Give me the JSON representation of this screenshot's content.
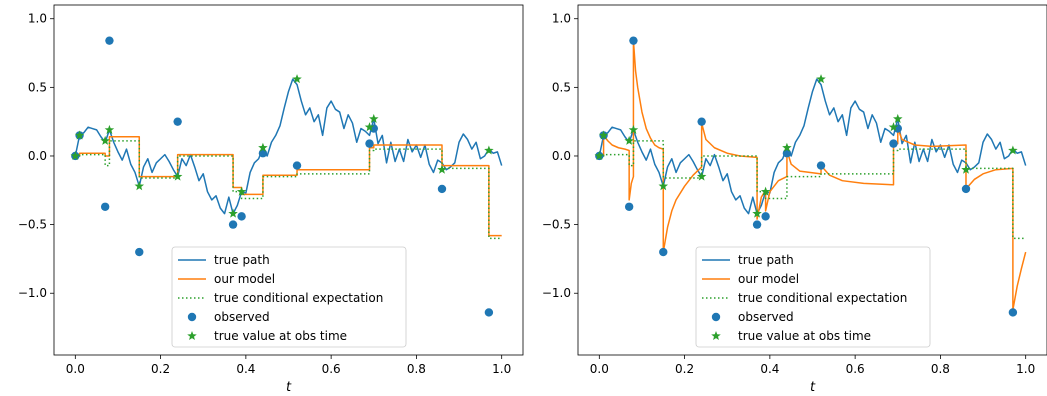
{
  "chart_data": [
    {
      "type": "line",
      "xlabel": "t",
      "xlim": [
        -0.05,
        1.05
      ],
      "ylim": [
        -1.45,
        1.1
      ],
      "xticks": [
        "0.0",
        "0.2",
        "0.4",
        "0.6",
        "0.8",
        "1.0"
      ],
      "yticks": [
        "−1.0",
        "−0.5",
        "0.0",
        "0.5",
        "1.0"
      ],
      "legend_placement": "lower-center",
      "legend": {
        "true_path": "true path",
        "our_model": "our model",
        "true_cond_exp": "true conditional expectation",
        "observed": "observed",
        "true_value_obs": "true value at obs time"
      },
      "colors": {
        "path": "#1f77b4",
        "model": "#ff7f0e",
        "cond": "#2ca02c",
        "observed": "#1f77b4",
        "star": "#2ca02c"
      },
      "true_path": {
        "x": [
          0,
          0.01,
          0.02,
          0.03,
          0.04,
          0.05,
          0.06,
          0.07,
          0.08,
          0.09,
          0.1,
          0.11,
          0.12,
          0.13,
          0.14,
          0.15,
          0.16,
          0.17,
          0.18,
          0.19,
          0.2,
          0.21,
          0.22,
          0.23,
          0.24,
          0.25,
          0.26,
          0.27,
          0.28,
          0.29,
          0.3,
          0.31,
          0.32,
          0.33,
          0.34,
          0.35,
          0.36,
          0.37,
          0.38,
          0.39,
          0.4,
          0.41,
          0.42,
          0.43,
          0.44,
          0.45,
          0.46,
          0.47,
          0.48,
          0.49,
          0.5,
          0.51,
          0.52,
          0.53,
          0.54,
          0.55,
          0.56,
          0.57,
          0.58,
          0.59,
          0.6,
          0.61,
          0.62,
          0.63,
          0.64,
          0.65,
          0.66,
          0.67,
          0.68,
          0.69,
          0.7,
          0.71,
          0.72,
          0.73,
          0.74,
          0.75,
          0.76,
          0.77,
          0.78,
          0.79,
          0.8,
          0.81,
          0.82,
          0.83,
          0.84,
          0.85,
          0.86,
          0.87,
          0.88,
          0.89,
          0.9,
          0.91,
          0.92,
          0.93,
          0.94,
          0.95,
          0.96,
          0.97,
          0.98,
          0.99,
          1.0
        ],
        "y": [
          0,
          0.15,
          0.17,
          0.21,
          0.2,
          0.19,
          0.14,
          0.1,
          0.19,
          0.1,
          0.03,
          -0.03,
          0.05,
          -0.06,
          -0.12,
          -0.22,
          -0.08,
          -0.02,
          -0.12,
          -0.05,
          -0.02,
          0.01,
          -0.04,
          -0.1,
          -0.15,
          -0.02,
          -0.07,
          0.01,
          -0.08,
          -0.18,
          -0.13,
          -0.26,
          -0.32,
          -0.29,
          -0.38,
          -0.42,
          -0.3,
          -0.42,
          -0.36,
          -0.26,
          -0.27,
          -0.12,
          -0.05,
          -0.02,
          0.06,
          0.0,
          0.1,
          0.15,
          0.22,
          0.35,
          0.47,
          0.56,
          0.52,
          0.4,
          0.3,
          0.35,
          0.25,
          0.3,
          0.15,
          0.35,
          0.4,
          0.34,
          0.32,
          0.2,
          0.3,
          0.24,
          0.1,
          0.2,
          0.18,
          0.15,
          0.27,
          0.09,
          0.15,
          -0.05,
          0.1,
          -0.04,
          0.05,
          -0.04,
          0.12,
          0.03,
          0.08,
          -0.01,
          0.08,
          -0.06,
          -0.12,
          -0.03,
          -0.05,
          -0.1,
          -0.08,
          -0.05,
          0.1,
          0.16,
          0.12,
          0.05,
          0.1,
          -0.02,
          0.0,
          0.05,
          0.02,
          0.03,
          -0.07
        ]
      },
      "observed": {
        "x": [
          0.0,
          0.01,
          0.07,
          0.08,
          0.15,
          0.24,
          0.37,
          0.39,
          0.44,
          0.52,
          0.69,
          0.7,
          0.86,
          0.97
        ],
        "y": [
          0.0,
          0.15,
          -0.37,
          0.84,
          -0.7,
          0.25,
          -0.5,
          -0.44,
          0.02,
          -0.07,
          0.09,
          0.2,
          -0.24,
          -1.14
        ]
      },
      "true_obs": {
        "x": [
          0.0,
          0.01,
          0.07,
          0.08,
          0.15,
          0.24,
          0.37,
          0.39,
          0.44,
          0.52,
          0.69,
          0.7,
          0.86,
          0.97
        ],
        "y": [
          0.0,
          0.15,
          0.11,
          0.19,
          -0.22,
          -0.15,
          -0.42,
          -0.26,
          0.06,
          0.56,
          0.21,
          0.27,
          -0.1,
          0.04
        ]
      },
      "model": {
        "x": [
          0,
          0.01,
          0.01,
          0.07,
          0.07,
          0.08,
          0.08,
          0.15,
          0.15,
          0.24,
          0.24,
          0.37,
          0.37,
          0.39,
          0.39,
          0.44,
          0.44,
          0.52,
          0.52,
          0.69,
          0.69,
          0.7,
          0.7,
          0.86,
          0.86,
          0.97,
          0.97,
          1.0
        ],
        "y": [
          0,
          0,
          0.02,
          0.02,
          0.0,
          0.0,
          0.14,
          0.14,
          -0.15,
          -0.15,
          0.01,
          0.01,
          -0.23,
          -0.23,
          -0.28,
          -0.28,
          -0.14,
          -0.14,
          -0.1,
          -0.1,
          0.06,
          0.06,
          0.08,
          0.08,
          -0.07,
          -0.07,
          -0.58,
          -0.58
        ]
      },
      "cond": {
        "x": [
          0,
          0.01,
          0.01,
          0.07,
          0.07,
          0.08,
          0.08,
          0.15,
          0.15,
          0.24,
          0.24,
          0.37,
          0.37,
          0.39,
          0.39,
          0.44,
          0.44,
          0.52,
          0.52,
          0.69,
          0.69,
          0.7,
          0.7,
          0.86,
          0.86,
          0.97,
          0.97,
          1.0
        ],
        "y": [
          0,
          0,
          0.01,
          0.01,
          -0.07,
          -0.07,
          0.11,
          0.11,
          -0.16,
          -0.16,
          0.0,
          0.0,
          -0.26,
          -0.26,
          -0.31,
          -0.31,
          -0.15,
          -0.15,
          -0.13,
          -0.13,
          0.04,
          0.04,
          0.05,
          0.05,
          -0.09,
          -0.09,
          -0.6,
          -0.6
        ]
      }
    },
    {
      "type": "line",
      "xlabel": "t",
      "xlim": [
        -0.05,
        1.05
      ],
      "ylim": [
        -1.45,
        1.1
      ],
      "xticks": [
        "0.0",
        "0.2",
        "0.4",
        "0.6",
        "0.8",
        "1.0"
      ],
      "yticks": [
        "−1.0",
        "−0.5",
        "0.0",
        "0.5",
        "1.0"
      ],
      "legend_placement": "lower-center",
      "legend": {
        "true_path": "true path",
        "our_model": "our model",
        "true_cond_exp": "true conditional expectation",
        "observed": "observed",
        "true_value_obs": "true value at obs time"
      },
      "colors": {
        "path": "#1f77b4",
        "model": "#ff7f0e",
        "cond": "#2ca02c",
        "observed": "#1f77b4",
        "star": "#2ca02c"
      },
      "true_path": {
        "x": [
          0,
          0.01,
          0.02,
          0.03,
          0.04,
          0.05,
          0.06,
          0.07,
          0.08,
          0.09,
          0.1,
          0.11,
          0.12,
          0.13,
          0.14,
          0.15,
          0.16,
          0.17,
          0.18,
          0.19,
          0.2,
          0.21,
          0.22,
          0.23,
          0.24,
          0.25,
          0.26,
          0.27,
          0.28,
          0.29,
          0.3,
          0.31,
          0.32,
          0.33,
          0.34,
          0.35,
          0.36,
          0.37,
          0.38,
          0.39,
          0.4,
          0.41,
          0.42,
          0.43,
          0.44,
          0.45,
          0.46,
          0.47,
          0.48,
          0.49,
          0.5,
          0.51,
          0.52,
          0.53,
          0.54,
          0.55,
          0.56,
          0.57,
          0.58,
          0.59,
          0.6,
          0.61,
          0.62,
          0.63,
          0.64,
          0.65,
          0.66,
          0.67,
          0.68,
          0.69,
          0.7,
          0.71,
          0.72,
          0.73,
          0.74,
          0.75,
          0.76,
          0.77,
          0.78,
          0.79,
          0.8,
          0.81,
          0.82,
          0.83,
          0.84,
          0.85,
          0.86,
          0.87,
          0.88,
          0.89,
          0.9,
          0.91,
          0.92,
          0.93,
          0.94,
          0.95,
          0.96,
          0.97,
          0.98,
          0.99,
          1.0
        ],
        "y": [
          0,
          0.15,
          0.17,
          0.21,
          0.2,
          0.19,
          0.14,
          0.1,
          0.19,
          0.1,
          0.03,
          -0.03,
          0.05,
          -0.06,
          -0.12,
          -0.22,
          -0.08,
          -0.02,
          -0.12,
          -0.05,
          -0.02,
          0.01,
          -0.04,
          -0.1,
          -0.15,
          -0.02,
          -0.07,
          0.01,
          -0.08,
          -0.18,
          -0.13,
          -0.26,
          -0.32,
          -0.29,
          -0.38,
          -0.42,
          -0.3,
          -0.42,
          -0.36,
          -0.26,
          -0.27,
          -0.12,
          -0.05,
          -0.02,
          0.06,
          0.0,
          0.1,
          0.15,
          0.22,
          0.35,
          0.47,
          0.56,
          0.52,
          0.4,
          0.3,
          0.35,
          0.25,
          0.3,
          0.15,
          0.35,
          0.4,
          0.34,
          0.32,
          0.2,
          0.3,
          0.24,
          0.1,
          0.2,
          0.18,
          0.15,
          0.27,
          0.09,
          0.15,
          -0.05,
          0.1,
          -0.04,
          0.05,
          -0.04,
          0.12,
          0.03,
          0.08,
          -0.01,
          0.08,
          -0.06,
          -0.12,
          -0.03,
          -0.05,
          -0.1,
          -0.08,
          -0.05,
          0.1,
          0.16,
          0.12,
          0.05,
          0.1,
          -0.02,
          0.0,
          0.05,
          0.02,
          0.03,
          -0.07
        ]
      },
      "observed": {
        "x": [
          0.0,
          0.01,
          0.07,
          0.08,
          0.15,
          0.24,
          0.37,
          0.39,
          0.44,
          0.52,
          0.69,
          0.7,
          0.86,
          0.97
        ],
        "y": [
          0.0,
          0.15,
          -0.37,
          0.84,
          -0.7,
          0.25,
          -0.5,
          -0.44,
          0.02,
          -0.07,
          0.09,
          0.2,
          -0.24,
          -1.14
        ]
      },
      "true_obs": {
        "x": [
          0.0,
          0.01,
          0.07,
          0.08,
          0.15,
          0.24,
          0.37,
          0.39,
          0.44,
          0.52,
          0.69,
          0.7,
          0.86,
          0.97
        ],
        "y": [
          0.0,
          0.15,
          0.11,
          0.19,
          -0.22,
          -0.15,
          -0.42,
          -0.26,
          0.06,
          0.56,
          0.21,
          0.27,
          -0.1,
          0.04
        ]
      },
      "model": {
        "x": [
          0,
          0.01,
          0.01,
          0.02,
          0.03,
          0.045,
          0.06,
          0.07,
          0.07,
          0.075,
          0.08,
          0.08,
          0.085,
          0.09,
          0.1,
          0.11,
          0.12,
          0.13,
          0.14,
          0.15,
          0.15,
          0.16,
          0.17,
          0.18,
          0.2,
          0.22,
          0.24,
          0.24,
          0.25,
          0.27,
          0.3,
          0.33,
          0.37,
          0.37,
          0.38,
          0.39,
          0.39,
          0.4,
          0.42,
          0.44,
          0.44,
          0.45,
          0.47,
          0.52,
          0.52,
          0.54,
          0.57,
          0.62,
          0.69,
          0.69,
          0.7,
          0.7,
          0.71,
          0.74,
          0.78,
          0.86,
          0.86,
          0.88,
          0.9,
          0.93,
          0.97,
          0.97,
          0.98,
          0.99,
          1.0
        ],
        "y": [
          0,
          0,
          0.15,
          0.11,
          0.08,
          0.06,
          0.05,
          0.04,
          -0.32,
          -0.2,
          -0.15,
          0.84,
          0.62,
          0.5,
          0.32,
          0.2,
          0.13,
          0.08,
          0.06,
          0.05,
          -0.7,
          -0.52,
          -0.4,
          -0.32,
          -0.22,
          -0.14,
          -0.08,
          0.24,
          0.12,
          0.06,
          0.02,
          0.0,
          -0.01,
          -0.46,
          -0.3,
          -0.25,
          -0.4,
          -0.26,
          -0.18,
          -0.15,
          0.04,
          -0.06,
          -0.11,
          -0.13,
          -0.07,
          -0.14,
          -0.18,
          -0.2,
          -0.21,
          0.1,
          0.09,
          0.2,
          0.12,
          0.08,
          0.07,
          0.08,
          -0.24,
          -0.17,
          -0.13,
          -0.1,
          -0.09,
          -1.12,
          -0.95,
          -0.82,
          -0.7
        ]
      },
      "cond": {
        "x": [
          0,
          0.01,
          0.01,
          0.07,
          0.07,
          0.08,
          0.08,
          0.15,
          0.15,
          0.24,
          0.24,
          0.37,
          0.37,
          0.39,
          0.39,
          0.44,
          0.44,
          0.52,
          0.52,
          0.69,
          0.69,
          0.7,
          0.7,
          0.86,
          0.86,
          0.97,
          0.97,
          1.0
        ],
        "y": [
          0,
          0,
          0.01,
          0.01,
          -0.07,
          -0.07,
          0.11,
          0.11,
          -0.16,
          -0.16,
          0.0,
          0.0,
          -0.26,
          -0.26,
          -0.31,
          -0.31,
          -0.15,
          -0.15,
          -0.13,
          -0.13,
          0.04,
          0.04,
          0.05,
          0.05,
          -0.09,
          -0.09,
          -0.6,
          -0.6
        ]
      }
    }
  ]
}
